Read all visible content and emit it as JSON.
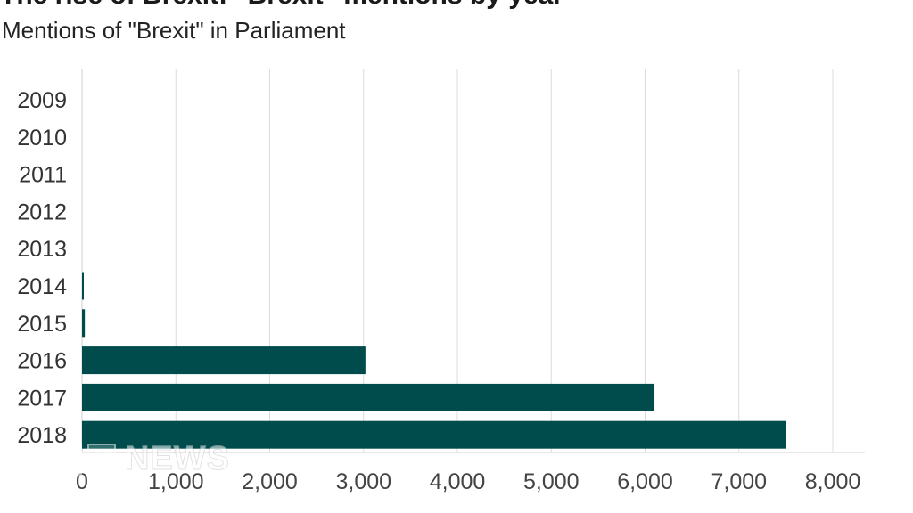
{
  "header": {
    "clipped_title": "The rise of Brexit: \"Brexit\" mentions by year",
    "subtitle": "Mentions of \"Brexit\" in Parliament"
  },
  "logo": {
    "letters": [
      "B",
      "B",
      "C"
    ],
    "word": "NEWS"
  },
  "chart_data": {
    "type": "bar",
    "orientation": "horizontal",
    "categories": [
      "2009",
      "2010",
      "2011",
      "2012",
      "2013",
      "2014",
      "2015",
      "2016",
      "2017",
      "2018"
    ],
    "values": [
      0,
      0,
      0,
      0,
      0,
      15,
      30,
      3020,
      6100,
      7500
    ],
    "xlim": [
      0,
      8000
    ],
    "xticks": [
      0,
      1000,
      2000,
      3000,
      4000,
      5000,
      6000,
      7000,
      8000
    ],
    "xtick_labels": [
      "0",
      "1,000",
      "2,000",
      "3,000",
      "4,000",
      "5,000",
      "6,000",
      "7,000",
      "8,000"
    ],
    "grid": "vertical",
    "bar_color": "#004c4c"
  }
}
